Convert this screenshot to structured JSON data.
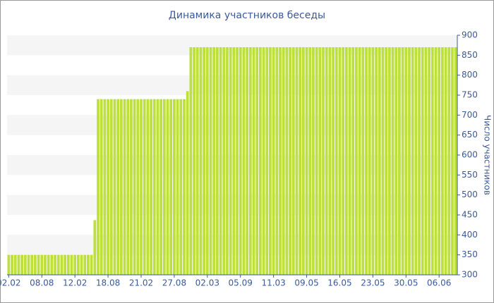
{
  "chart_data": {
    "type": "bar",
    "title": "Динамика участников беседы",
    "y_label": "Число участников",
    "categories": [
      "02.02",
      null,
      null,
      null,
      null,
      null,
      null,
      null,
      null,
      null,
      "08.08",
      null,
      null,
      null,
      null,
      null,
      null,
      null,
      null,
      null,
      "12.02",
      null,
      null,
      null,
      null,
      null,
      null,
      null,
      null,
      null,
      "18.08",
      null,
      null,
      null,
      null,
      null,
      null,
      null,
      null,
      null,
      "21.02",
      null,
      null,
      null,
      null,
      null,
      null,
      null,
      null,
      null,
      "27.08",
      null,
      null,
      null,
      null,
      null,
      null,
      null,
      null,
      null,
      "02.03",
      null,
      null,
      null,
      null,
      null,
      null,
      null,
      null,
      null,
      "05.09",
      null,
      null,
      null,
      null,
      null,
      null,
      null,
      null,
      null,
      "11.03",
      null,
      null,
      null,
      null,
      null,
      null,
      null,
      null,
      null,
      "09.05",
      null,
      null,
      null,
      null,
      null,
      null,
      null,
      null,
      null,
      "16.05",
      null,
      null,
      null,
      null,
      null,
      null,
      null,
      null,
      null,
      "23.05",
      null,
      null,
      null,
      null,
      null,
      null,
      null,
      null,
      null,
      "30.05",
      null,
      null,
      null,
      null,
      null,
      null,
      null,
      null,
      null,
      "06.06",
      null,
      null,
      null,
      null,
      null
    ],
    "values": [
      350,
      350,
      350,
      350,
      350,
      350,
      350,
      350,
      350,
      350,
      350,
      350,
      350,
      350,
      350,
      350,
      350,
      350,
      350,
      350,
      350,
      350,
      350,
      350,
      350,
      350,
      437,
      740,
      740,
      740,
      740,
      740,
      740,
      740,
      740,
      740,
      740,
      740,
      740,
      740,
      740,
      740,
      740,
      740,
      740,
      740,
      740,
      740,
      740,
      740,
      740,
      740,
      740,
      740,
      760,
      870,
      870,
      870,
      870,
      870,
      870,
      870,
      870,
      870,
      870,
      870,
      870,
      870,
      870,
      870,
      870,
      870,
      870,
      870,
      870,
      870,
      870,
      870,
      870,
      870,
      870,
      870,
      870,
      870,
      870,
      870,
      870,
      870,
      870,
      870,
      870,
      870,
      870,
      870,
      870,
      870,
      870,
      870,
      870,
      870,
      870,
      870,
      870,
      870,
      870,
      870,
      870,
      870,
      870,
      870,
      870,
      870,
      870,
      870,
      870,
      870,
      870,
      870,
      870,
      870,
      870,
      870,
      870,
      870,
      870,
      870,
      870,
      870,
      870,
      870,
      870,
      870,
      870,
      870,
      870,
      870
    ],
    "color": "#bde03a",
    "ylim": [
      300,
      900
    ],
    "yticks": [
      300,
      350,
      400,
      450,
      500,
      550,
      600,
      650,
      700,
      750,
      800,
      850,
      900
    ],
    "grid": true
  }
}
